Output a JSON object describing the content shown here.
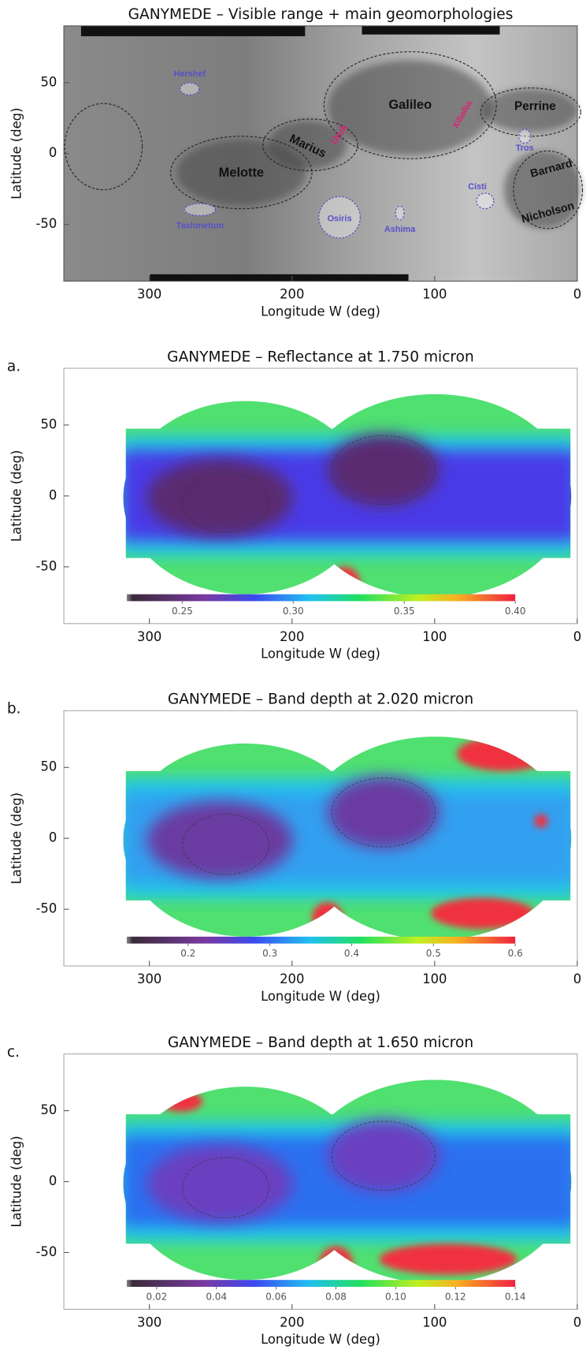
{
  "chart_data": [
    {
      "type": "image_map",
      "title": "GANYMEDE – Visible range + main geomorphologies",
      "xlabel": "Longitude W (deg)",
      "ylabel": "Latitude (deg)",
      "xlim": [
        360,
        0
      ],
      "ylim": [
        -90,
        90
      ],
      "xticks": [
        300,
        200,
        100,
        0
      ],
      "yticks": [
        50,
        0,
        -50
      ],
      "annotations": [
        "Hershef",
        "Galileo",
        "Perrine",
        "Uruk",
        "Marius",
        "Xibalba",
        "Tros",
        "Melotte",
        "Barnard",
        "Cisti",
        "Nicholson",
        "Tashmetum",
        "Osiris",
        "Ashima"
      ]
    },
    {
      "type": "heatmap",
      "panel_label": "a.",
      "title": "GANYMEDE – Reflectance at 1.750 micron",
      "xlabel": "Longitude W (deg)",
      "ylabel": "Latitude (deg)",
      "xlim": [
        360,
        0
      ],
      "ylim": [
        -90,
        90
      ],
      "xticks": [
        300,
        200,
        100,
        0
      ],
      "yticks": [
        50,
        0,
        -50
      ],
      "colorbar": {
        "clim": [
          0.225,
          0.4
        ],
        "ticks": [
          0.25,
          {
            "value": 0.3,
            "label": "0.30"
          },
          0.35,
          {
            "value": 0.4,
            "label": "0.40"
          }
        ]
      }
    },
    {
      "type": "heatmap",
      "panel_label": "b.",
      "title": "GANYMEDE – Band depth at 2.020 micron",
      "xlabel": "Longitude W (deg)",
      "ylabel": "Latitude (deg)",
      "xlim": [
        360,
        0
      ],
      "ylim": [
        -90,
        90
      ],
      "xticks": [
        300,
        200,
        100,
        0
      ],
      "yticks": [
        50,
        0,
        -50
      ],
      "colorbar": {
        "clim": [
          0.125,
          0.6
        ],
        "ticks": [
          0.2,
          0.3,
          0.4,
          0.5,
          0.6
        ]
      }
    },
    {
      "type": "heatmap",
      "panel_label": "c.",
      "title": "GANYMEDE – Band depth at 1.650 micron",
      "xlabel": "Longitude W (deg)",
      "ylabel": "Latitude (deg)",
      "xlim": [
        360,
        0
      ],
      "ylim": [
        -90,
        90
      ],
      "xticks": [
        300,
        200,
        100,
        0
      ],
      "yticks": [
        50,
        0,
        -50
      ],
      "colorbar": {
        "clim": [
          0.01,
          0.14
        ],
        "ticks": [
          0.02,
          0.04,
          0.06,
          0.08,
          {
            "value": 0.1,
            "label": "0.10"
          },
          0.12,
          0.14
        ]
      }
    }
  ]
}
